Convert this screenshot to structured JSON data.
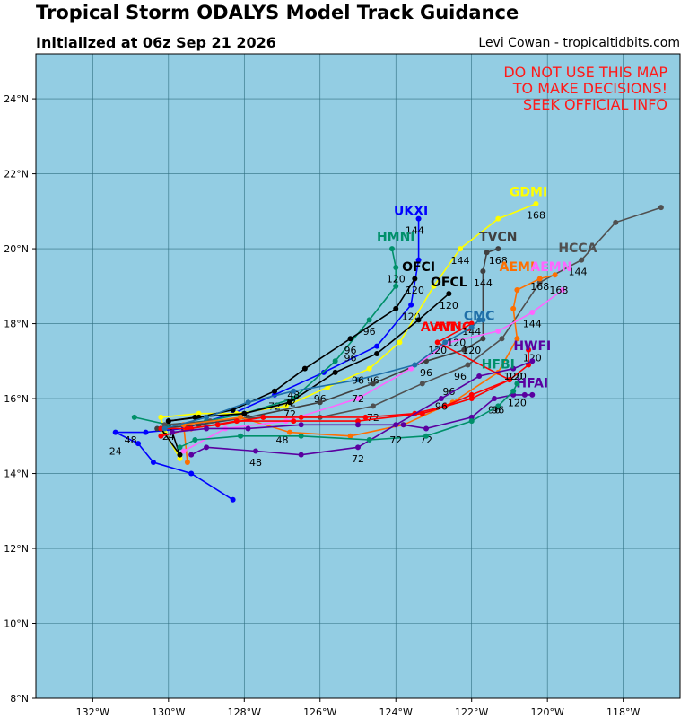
{
  "header": {
    "title": "Tropical Storm ODALYS Model Track Guidance",
    "subtitle": "Initialized at 06z Sep 21 2026",
    "credit": "Levi Cowan - tropicaltidbits.com"
  },
  "warning": {
    "line1": "DO NOT USE THIS MAP",
    "line2": "TO MAKE DECISIONS!",
    "line3": "SEEK OFFICIAL INFO"
  },
  "map": {
    "lon_range": [
      -133.5,
      -116.5
    ],
    "lat_range": [
      8,
      25.2
    ],
    "ocean_color": "#93cde3",
    "grid_color": "#2f6f80",
    "lon_ticks": [
      {
        "value": -132,
        "label": "132°W"
      },
      {
        "value": -130,
        "label": "130°W"
      },
      {
        "value": -128,
        "label": "128°W"
      },
      {
        "value": -126,
        "label": "126°W"
      },
      {
        "value": -124,
        "label": "124°W"
      },
      {
        "value": -122,
        "label": "122°W"
      },
      {
        "value": -120,
        "label": "120°W"
      },
      {
        "value": -118,
        "label": "118°W"
      }
    ],
    "lat_ticks": [
      {
        "value": 8,
        "label": "8°N"
      },
      {
        "value": 10,
        "label": "10°N"
      },
      {
        "value": 12,
        "label": "12°N"
      },
      {
        "value": 14,
        "label": "14°N"
      },
      {
        "value": 16,
        "label": "16°N"
      },
      {
        "value": 18,
        "label": "18°N"
      },
      {
        "value": 20,
        "label": "20°N"
      },
      {
        "value": 22,
        "label": "22°N"
      },
      {
        "value": 24,
        "label": "24°N"
      }
    ]
  },
  "tracks": [
    {
      "name": "UKXI",
      "color": "#0000ff",
      "label_pos": [
        -123.6,
        20.9
      ],
      "points": [
        [
          -128.3,
          13.3
        ],
        [
          -129.4,
          14.0
        ],
        [
          -130.4,
          14.3
        ],
        [
          -130.8,
          14.8
        ],
        [
          -131.4,
          15.1
        ],
        [
          -130.6,
          15.1
        ],
        [
          -129.6,
          15.2
        ],
        [
          -128.3,
          15.6
        ],
        [
          -127.2,
          16.1
        ],
        [
          -125.9,
          16.7
        ],
        [
          -124.5,
          17.4
        ],
        [
          -123.6,
          18.5
        ],
        [
          -123.4,
          19.7
        ],
        [
          -123.4,
          20.8
        ]
      ],
      "hour_labels": [
        {
          "h": "24",
          "p": [
            -131.4,
            14.5
          ]
        },
        {
          "h": "48",
          "p": [
            -131.0,
            14.8
          ]
        },
        {
          "h": "72",
          "p": [
            -127.2,
            15.7
          ]
        },
        {
          "h": "96",
          "p": [
            -125.2,
            17.0
          ]
        },
        {
          "h": "120",
          "p": [
            -123.6,
            18.1
          ]
        },
        {
          "h": "144",
          "p": [
            -123.5,
            20.4
          ]
        }
      ]
    },
    {
      "name": "GDMI",
      "color": "#ffff00",
      "label_pos": [
        -120.5,
        21.4
      ],
      "points": [
        [
          -129.7,
          14.4
        ],
        [
          -130.1,
          15.1
        ],
        [
          -130.2,
          15.5
        ],
        [
          -129.2,
          15.6
        ],
        [
          -128.2,
          15.6
        ],
        [
          -126.9,
          15.8
        ],
        [
          -125.8,
          16.3
        ],
        [
          -124.7,
          16.8
        ],
        [
          -123.9,
          17.5
        ],
        [
          -123.0,
          19.0
        ],
        [
          -122.3,
          20.0
        ],
        [
          -121.3,
          20.8
        ],
        [
          -120.3,
          21.2
        ]
      ],
      "hour_labels": [
        {
          "h": "24",
          "p": [
            -130.0,
            14.9
          ]
        },
        {
          "h": "96",
          "p": [
            -126.0,
            15.9
          ]
        },
        {
          "h": "144",
          "p": [
            -122.3,
            19.6
          ]
        },
        {
          "h": "168",
          "p": [
            -120.3,
            20.8
          ]
        }
      ]
    },
    {
      "name": "HMNI",
      "color": "#00906a",
      "label_pos": [
        -124.0,
        20.2
      ],
      "points": [
        [
          -130.9,
          15.5
        ],
        [
          -130.0,
          15.3
        ],
        [
          -129.0,
          15.4
        ],
        [
          -128.0,
          15.6
        ],
        [
          -126.7,
          16.0
        ],
        [
          -125.6,
          17.0
        ],
        [
          -124.7,
          18.1
        ],
        [
          -124.0,
          19.0
        ],
        [
          -124.0,
          19.5
        ],
        [
          -124.1,
          20.0
        ]
      ],
      "hour_labels": [
        {
          "h": "48",
          "p": [
            -126.7,
            16.0
          ]
        },
        {
          "h": "96",
          "p": [
            -124.7,
            17.7
          ]
        },
        {
          "h": "120",
          "p": [
            -124.0,
            19.1
          ]
        }
      ]
    },
    {
      "name": "OFCI",
      "color": "#000000",
      "label_pos": [
        -123.4,
        19.4
      ],
      "points": [
        [
          -130.2,
          15.2
        ],
        [
          -129.7,
          14.5
        ],
        [
          -130.0,
          15.4
        ],
        [
          -129.2,
          15.5
        ],
        [
          -128.3,
          15.7
        ],
        [
          -127.2,
          16.2
        ],
        [
          -126.4,
          16.8
        ],
        [
          -125.2,
          17.6
        ],
        [
          -124.0,
          18.4
        ],
        [
          -123.5,
          19.2
        ]
      ],
      "hour_labels": [
        {
          "h": "72",
          "p": [
            -126.8,
            15.8
          ]
        },
        {
          "h": "96",
          "p": [
            -125.2,
            17.2
          ]
        },
        {
          "h": "120",
          "p": [
            -123.5,
            18.8
          ]
        }
      ]
    },
    {
      "name": "OFCL",
      "color": "#000000",
      "label_pos": [
        -122.6,
        19.0
      ],
      "points": [
        [
          -130.0,
          15.4
        ],
        [
          -129.3,
          15.5
        ],
        [
          -128.0,
          15.6
        ],
        [
          -126.8,
          15.9
        ],
        [
          -125.6,
          16.7
        ],
        [
          -124.5,
          17.2
        ],
        [
          -123.4,
          18.1
        ],
        [
          -122.6,
          18.8
        ]
      ],
      "hour_labels": [
        {
          "h": "72",
          "p": [
            -126.8,
            15.5
          ]
        },
        {
          "h": "96",
          "p": [
            -124.6,
            16.4
          ]
        },
        {
          "h": "120",
          "p": [
            -122.6,
            18.4
          ]
        }
      ]
    },
    {
      "name": "TVCN",
      "color": "#404040",
      "label_pos": [
        -121.3,
        20.2
      ],
      "points": [
        [
          -130.3,
          15.2
        ],
        [
          -129.2,
          15.3
        ],
        [
          -127.9,
          15.5
        ],
        [
          -126.0,
          15.9
        ],
        [
          -124.6,
          16.4
        ],
        [
          -123.2,
          17.0
        ],
        [
          -122.2,
          17.3
        ],
        [
          -121.7,
          17.6
        ],
        [
          -121.7,
          19.4
        ],
        [
          -121.6,
          19.9
        ],
        [
          -121.3,
          20.0
        ]
      ],
      "hour_labels": [
        {
          "h": "96",
          "p": [
            -123.2,
            16.6
          ]
        },
        {
          "h": "120",
          "p": [
            -122.0,
            17.2
          ]
        },
        {
          "h": "144",
          "p": [
            -121.7,
            19.0
          ]
        },
        {
          "h": "168",
          "p": [
            -121.3,
            19.6
          ]
        }
      ]
    },
    {
      "name": "HCCA",
      "color": "#505050",
      "label_pos": [
        -119.2,
        19.9
      ],
      "points": [
        [
          -130.1,
          15.3
        ],
        [
          -128.9,
          15.4
        ],
        [
          -127.5,
          15.5
        ],
        [
          -126.0,
          15.5
        ],
        [
          -124.6,
          15.8
        ],
        [
          -123.3,
          16.4
        ],
        [
          -122.1,
          16.9
        ],
        [
          -121.2,
          17.6
        ],
        [
          -120.2,
          19.1
        ],
        [
          -119.1,
          19.7
        ],
        [
          -118.2,
          20.7
        ],
        [
          -117.0,
          21.1
        ]
      ],
      "hour_labels": [
        {
          "h": "72",
          "p": [
            -124.6,
            15.4
          ]
        },
        {
          "h": "96",
          "p": [
            -122.3,
            16.5
          ]
        },
        {
          "h": "144",
          "p": [
            -119.2,
            19.3
          ]
        }
      ]
    },
    {
      "name": "AEMI",
      "color": "#ff6f00",
      "label_pos": [
        -120.8,
        19.4
      ],
      "points": [
        [
          -129.5,
          14.3
        ],
        [
          -129.6,
          15.3
        ],
        [
          -128.1,
          15.5
        ],
        [
          -126.8,
          15.1
        ],
        [
          -125.2,
          15.0
        ],
        [
          -123.8,
          15.3
        ],
        [
          -122.5,
          15.9
        ],
        [
          -121.3,
          16.7
        ],
        [
          -120.8,
          17.6
        ],
        [
          -120.9,
          18.4
        ],
        [
          -120.8,
          18.9
        ],
        [
          -120.2,
          19.2
        ],
        [
          -119.8,
          19.3
        ]
      ],
      "hour_labels": [
        {
          "h": "48",
          "p": [
            -127.0,
            14.8
          ]
        },
        {
          "h": "120",
          "p": [
            -120.4,
            17.0
          ]
        },
        {
          "h": "168",
          "p": [
            -120.2,
            18.9
          ]
        }
      ]
    },
    {
      "name": "AEMN",
      "color": "#ff66ff",
      "label_pos": [
        -119.9,
        19.4
      ],
      "points": [
        [
          -129.6,
          14.6
        ],
        [
          -128.5,
          15.2
        ],
        [
          -126.9,
          15.4
        ],
        [
          -125.0,
          16.0
        ],
        [
          -123.6,
          16.8
        ],
        [
          -122.6,
          17.5
        ],
        [
          -121.3,
          17.8
        ],
        [
          -120.4,
          18.3
        ],
        [
          -119.6,
          18.9
        ]
      ],
      "hour_labels": [
        {
          "h": "144",
          "p": [
            -120.4,
            17.9
          ]
        },
        {
          "h": "168",
          "p": [
            -119.7,
            18.8
          ]
        }
      ]
    },
    {
      "name": "AVNO",
      "color": "#ff0000",
      "label_pos": [
        -122.5,
        17.8
      ],
      "points": [
        [
          -130.2,
          15.0
        ],
        [
          -129.4,
          15.2
        ],
        [
          -128.2,
          15.4
        ],
        [
          -126.7,
          15.4
        ],
        [
          -125.0,
          15.4
        ],
        [
          -123.3,
          15.6
        ],
        [
          -122.0,
          16.0
        ],
        [
          -121.0,
          16.5
        ],
        [
          -120.5,
          16.9
        ],
        [
          -120.5,
          17.3
        ]
      ],
      "hour_labels": [
        {
          "h": "72",
          "p": [
            -125.0,
            15.9
          ]
        },
        {
          "h": "96",
          "p": [
            -122.6,
            16.1
          ]
        },
        {
          "h": "120",
          "p": [
            -120.8,
            16.5
          ]
        }
      ]
    },
    {
      "name": "AVNI",
      "color": "#ff0000",
      "label_pos": [
        -122.9,
        17.8
      ],
      "points": [
        [
          -130.2,
          15.2
        ],
        [
          -129.5,
          15.2
        ],
        [
          -128.7,
          15.3
        ],
        [
          -127.5,
          15.5
        ],
        [
          -126.5,
          15.5
        ],
        [
          -124.8,
          15.5
        ],
        [
          -123.5,
          15.6
        ],
        [
          -122.7,
          15.8
        ],
        [
          -122.0,
          16.1
        ],
        [
          -121.0,
          16.5
        ],
        [
          -122.9,
          17.5
        ],
        [
          -122.0,
          18.0
        ]
      ],
      "hour_labels": [
        {
          "h": "120",
          "p": [
            -122.9,
            17.2
          ]
        },
        {
          "h": "144",
          "p": [
            -122.0,
            17.7
          ]
        }
      ]
    },
    {
      "name": "HWFI",
      "color": "#5a00a0",
      "label_pos": [
        -120.4,
        17.3
      ],
      "points": [
        [
          -129.4,
          14.5
        ],
        [
          -129.0,
          14.7
        ],
        [
          -127.7,
          14.6
        ],
        [
          -126.5,
          14.5
        ],
        [
          -125.0,
          14.7
        ],
        [
          -124.0,
          15.3
        ],
        [
          -122.8,
          16.0
        ],
        [
          -121.8,
          16.6
        ],
        [
          -120.9,
          16.8
        ],
        [
          -120.4,
          17.0
        ]
      ],
      "hour_labels": [
        {
          "h": "48",
          "p": [
            -127.7,
            14.2
          ]
        },
        {
          "h": "72",
          "p": [
            -125.0,
            14.3
          ]
        },
        {
          "h": "96",
          "p": [
            -122.8,
            15.7
          ]
        },
        {
          "h": "120",
          "p": [
            -120.9,
            16.5
          ]
        }
      ]
    },
    {
      "name": "HFAI",
      "color": "#5a00a0",
      "label_pos": [
        -120.4,
        16.3
      ],
      "points": [
        [
          -129.9,
          15.1
        ],
        [
          -129.0,
          15.2
        ],
        [
          -127.9,
          15.2
        ],
        [
          -126.5,
          15.3
        ],
        [
          -125.0,
          15.3
        ],
        [
          -123.8,
          15.3
        ],
        [
          -123.2,
          15.2
        ],
        [
          -122.0,
          15.5
        ],
        [
          -121.4,
          16.0
        ],
        [
          -120.9,
          16.1
        ],
        [
          -120.6,
          16.1
        ],
        [
          -120.4,
          16.1
        ]
      ],
      "hour_labels": [
        {
          "h": "72",
          "p": [
            -123.2,
            14.8
          ]
        },
        {
          "h": "96",
          "p": [
            -121.4,
            15.6
          ]
        },
        {
          "h": "120",
          "p": [
            -120.8,
            15.8
          ]
        }
      ]
    },
    {
      "name": "HFBI",
      "color": "#00906a",
      "label_pos": [
        -121.3,
        16.8
      ],
      "points": [
        [
          -129.7,
          14.7
        ],
        [
          -129.3,
          14.9
        ],
        [
          -128.1,
          15.0
        ],
        [
          -126.5,
          15.0
        ],
        [
          -124.7,
          14.9
        ],
        [
          -123.2,
          15.0
        ],
        [
          -122.0,
          15.4
        ],
        [
          -121.3,
          15.8
        ],
        [
          -120.9,
          16.2
        ],
        [
          -120.8,
          16.4
        ]
      ],
      "hour_labels": [
        {
          "h": "72",
          "p": [
            -124.0,
            14.8
          ]
        },
        {
          "h": "96",
          "p": [
            -121.3,
            15.6
          ]
        }
      ]
    },
    {
      "name": "CMC",
      "color": "#1f6fa8",
      "label_pos": [
        -121.8,
        18.1
      ],
      "points": [
        [
          -130.1,
          15.2
        ],
        [
          -129.0,
          15.5
        ],
        [
          -127.9,
          15.9
        ],
        [
          -126.7,
          16.2
        ],
        [
          -125.0,
          16.5
        ],
        [
          -123.5,
          16.9
        ],
        [
          -122.7,
          17.5
        ],
        [
          -122.0,
          17.9
        ],
        [
          -121.8,
          18.1
        ],
        [
          -121.7,
          18.1
        ]
      ],
      "hour_labels": [
        {
          "h": "96",
          "p": [
            -125.0,
            16.4
          ]
        },
        {
          "h": "120",
          "p": [
            -122.4,
            17.4
          ]
        }
      ]
    }
  ]
}
